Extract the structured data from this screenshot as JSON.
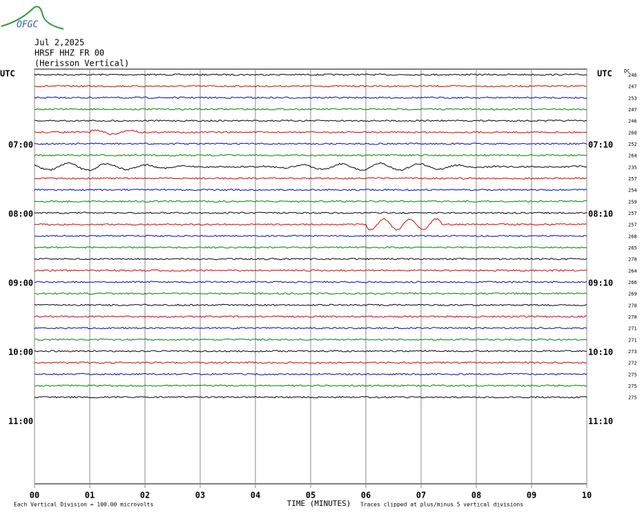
{
  "chart_data": {
    "type": "helicorder",
    "logo": "OFGC",
    "title_lines": [
      "Jul 2,2025",
      "HRSF HHZ FR 00",
      "(Herisson Vertical)"
    ],
    "left_header": "UTC",
    "right_header": "UTC",
    "dc_header": "DC",
    "left_hour_labels": [
      "07:00",
      "08:00",
      "09:00",
      "10:00",
      "11:00"
    ],
    "right_hour_labels": [
      "07:10",
      "08:10",
      "09:10",
      "10:10",
      "11:10"
    ],
    "dc_values": [
      246,
      247,
      253,
      247,
      246,
      260,
      252,
      264,
      235,
      257,
      254,
      259,
      257,
      257,
      268,
      265,
      270,
      264,
      266,
      269,
      270,
      270,
      271,
      271,
      273,
      272,
      275,
      275,
      275
    ],
    "trace_colors": [
      "#000000",
      "#d00000",
      "#0000c0",
      "#008000"
    ],
    "xlim": [
      0,
      10
    ],
    "xticks": [
      {
        "value": 0,
        "label": "00"
      },
      {
        "value": 1,
        "label": "01"
      },
      {
        "value": 2,
        "label": "02"
      },
      {
        "value": 3,
        "label": "03"
      },
      {
        "value": 4,
        "label": "04"
      },
      {
        "value": 5,
        "label": "05"
      },
      {
        "value": 6,
        "label": "06"
      },
      {
        "value": 7,
        "label": "07"
      },
      {
        "value": 8,
        "label": "08"
      },
      {
        "value": 9,
        "label": "09"
      },
      {
        "value": 10,
        "label": "10"
      }
    ],
    "xlabel": "TIME (MINUTES)",
    "footnote_left": "Each Vertical Division =  100.00 microvolts",
    "footnote_right": "Traces clipped at plus/minus 5 vertical divisions"
  }
}
